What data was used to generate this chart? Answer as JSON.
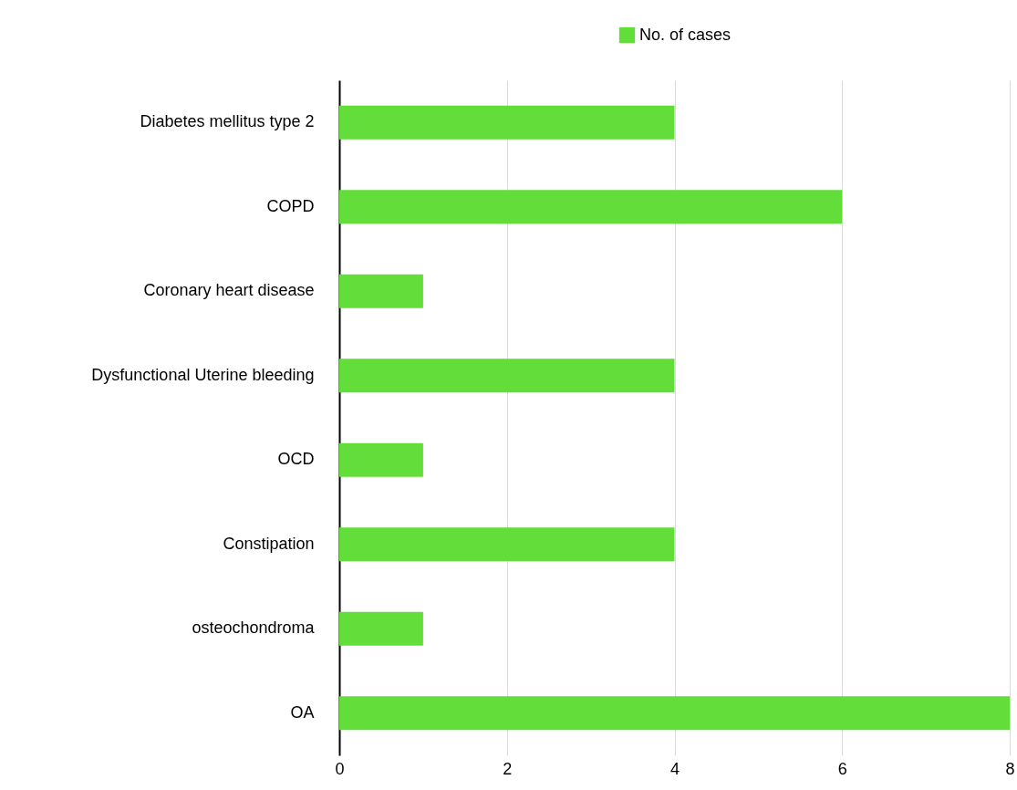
{
  "chart_data": {
    "type": "bar",
    "orientation": "horizontal",
    "categories": [
      "Diabetes mellitus type 2",
      "COPD",
      "Coronary heart disease",
      "Dysfunctional Uterine bleeding",
      "OCD",
      "Constipation",
      "osteochondroma",
      "OA"
    ],
    "series": [
      {
        "name": "No. of cases",
        "color": "#62dd3a",
        "values": [
          4,
          6,
          1,
          4,
          1,
          4,
          1,
          8
        ]
      }
    ],
    "xlim": [
      0,
      8
    ],
    "xticks": [
      0,
      2,
      4,
      6,
      8
    ],
    "grid": "x",
    "legend": "top"
  }
}
